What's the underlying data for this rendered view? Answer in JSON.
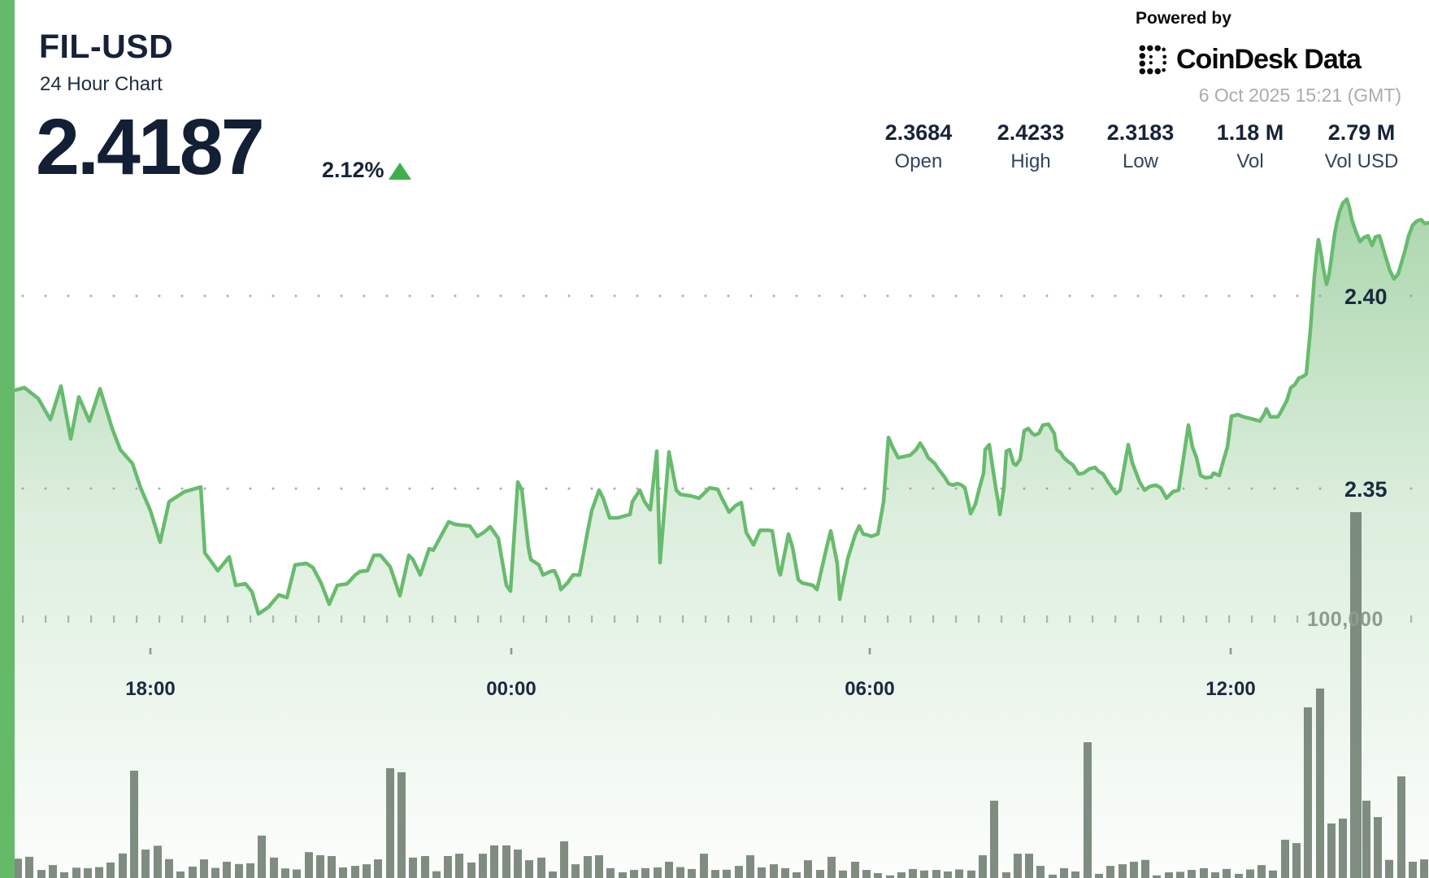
{
  "header": {
    "symbol": "FIL-USD",
    "subtitle": "24 Hour Chart",
    "price": "2.4187",
    "change_percent": "2.12%",
    "change_direction": "up",
    "powered_by": "Powered by",
    "brand": "CoinDesk Data",
    "timestamp": "6 Oct 2025 15:21 (GMT)"
  },
  "stats": [
    {
      "value": "2.3684",
      "label": "Open"
    },
    {
      "value": "2.4233",
      "label": "High"
    },
    {
      "value": "2.3183",
      "label": "Low"
    },
    {
      "value": "1.18 M",
      "label": "Vol"
    },
    {
      "value": "2.79 M",
      "label": "Vol USD"
    }
  ],
  "colors": {
    "accent_green": "#65ba6a",
    "line_green": "#68bb6e",
    "fill_green": "#5cb060",
    "triangle_green": "#3fae4c",
    "volume_bar": "#6d7d6f",
    "dark_navy": "#16233a",
    "muted_gray": "#a8acb0",
    "volume_label_gray": "#8d9b8e"
  },
  "chart_data": {
    "type": "area",
    "title": "FIL-USD 24 Hour Chart",
    "price_axis_ticks": [
      "2.40",
      "2.35"
    ],
    "price_axis_values": [
      2.4,
      2.35
    ],
    "volume_axis_tick": "100,000",
    "volume_axis_value": 100000,
    "time_ticks": [
      "18:00",
      "00:00",
      "06:00",
      "12:00"
    ],
    "grid": "dotted",
    "legend": "none",
    "price_points": [
      [
        18,
        2.3755
      ],
      [
        30,
        2.3762
      ],
      [
        47,
        2.3734
      ],
      [
        62,
        2.3679
      ],
      [
        75,
        2.3766
      ],
      [
        87,
        2.3629
      ],
      [
        97,
        2.3738
      ],
      [
        110,
        2.3675
      ],
      [
        123,
        2.3759
      ],
      [
        138,
        2.3656
      ],
      [
        148,
        2.3601
      ],
      [
        163,
        2.3565
      ],
      [
        173,
        2.3502
      ],
      [
        185,
        2.3443
      ],
      [
        197,
        2.3361
      ],
      [
        208,
        2.3466
      ],
      [
        227,
        2.3492
      ],
      [
        247,
        2.3504
      ],
      [
        252,
        2.3333
      ],
      [
        258,
        2.3316
      ],
      [
        268,
        2.3287
      ],
      [
        282,
        2.3323
      ],
      [
        290,
        2.3249
      ],
      [
        302,
        2.3253
      ],
      [
        310,
        2.3232
      ],
      [
        318,
        2.3175
      ],
      [
        330,
        2.3192
      ],
      [
        343,
        2.3224
      ],
      [
        353,
        2.3217
      ],
      [
        363,
        2.3302
      ],
      [
        377,
        2.3306
      ],
      [
        385,
        2.3295
      ],
      [
        395,
        2.3255
      ],
      [
        405,
        2.32
      ],
      [
        415,
        2.3249
      ],
      [
        427,
        2.3253
      ],
      [
        437,
        2.3276
      ],
      [
        443,
        2.3285
      ],
      [
        452,
        2.3287
      ],
      [
        460,
        2.3327
      ],
      [
        468,
        2.3327
      ],
      [
        480,
        2.3297
      ],
      [
        492,
        2.3222
      ],
      [
        503,
        2.3327
      ],
      [
        508,
        2.3316
      ],
      [
        517,
        2.3276
      ],
      [
        528,
        2.3344
      ],
      [
        533,
        2.334
      ],
      [
        552,
        2.3414
      ],
      [
        560,
        2.3407
      ],
      [
        578,
        2.3403
      ],
      [
        587,
        2.3376
      ],
      [
        595,
        2.3386
      ],
      [
        603,
        2.3401
      ],
      [
        613,
        2.3371
      ],
      [
        623,
        2.3249
      ],
      [
        628,
        2.3234
      ],
      [
        637,
        2.3517
      ],
      [
        642,
        2.3496
      ],
      [
        650,
        2.3348
      ],
      [
        653,
        2.3316
      ],
      [
        663,
        2.3302
      ],
      [
        668,
        2.3276
      ],
      [
        677,
        2.3285
      ],
      [
        682,
        2.3287
      ],
      [
        687,
        2.3264
      ],
      [
        690,
        2.3238
      ],
      [
        698,
        2.3255
      ],
      [
        705,
        2.3276
      ],
      [
        713,
        2.3276
      ],
      [
        723,
        2.339
      ],
      [
        728,
        2.3443
      ],
      [
        737,
        2.3496
      ],
      [
        742,
        2.3475
      ],
      [
        750,
        2.3424
      ],
      [
        760,
        2.3424
      ],
      [
        775,
        2.3433
      ],
      [
        778,
        2.3466
      ],
      [
        787,
        2.3496
      ],
      [
        793,
        2.3466
      ],
      [
        800,
        2.3445
      ],
      [
        808,
        2.3597
      ],
      [
        812,
        2.3308
      ],
      [
        823,
        2.3595
      ],
      [
        832,
        2.3496
      ],
      [
        837,
        2.3485
      ],
      [
        850,
        2.3481
      ],
      [
        860,
        2.3475
      ],
      [
        873,
        2.3502
      ],
      [
        883,
        2.3498
      ],
      [
        888,
        2.3475
      ],
      [
        897,
        2.3439
      ],
      [
        905,
        2.3456
      ],
      [
        912,
        2.3464
      ],
      [
        918,
        2.3386
      ],
      [
        927,
        2.3354
      ],
      [
        935,
        2.3392
      ],
      [
        945,
        2.3392
      ],
      [
        950,
        2.339
      ],
      [
        958,
        2.3287
      ],
      [
        960,
        2.3276
      ],
      [
        970,
        2.3382
      ],
      [
        975,
        2.3348
      ],
      [
        982,
        2.3264
      ],
      [
        987,
        2.3255
      ],
      [
        1000,
        2.3249
      ],
      [
        1005,
        2.3238
      ],
      [
        1017,
        2.3348
      ],
      [
        1022,
        2.339
      ],
      [
        1030,
        2.3306
      ],
      [
        1033,
        2.3213
      ],
      [
        1043,
        2.3319
      ],
      [
        1052,
        2.338
      ],
      [
        1057,
        2.3403
      ],
      [
        1062,
        2.3382
      ],
      [
        1067,
        2.338
      ],
      [
        1072,
        2.3376
      ],
      [
        1077,
        2.338
      ],
      [
        1080,
        2.3382
      ],
      [
        1087,
        2.3466
      ],
      [
        1093,
        2.3633
      ],
      [
        1098,
        2.3608
      ],
      [
        1105,
        2.358
      ],
      [
        1110,
        2.3582
      ],
      [
        1120,
        2.3587
      ],
      [
        1127,
        2.3601
      ],
      [
        1132,
        2.3618
      ],
      [
        1137,
        2.3601
      ],
      [
        1142,
        2.358
      ],
      [
        1150,
        2.3565
      ],
      [
        1155,
        2.3549
      ],
      [
        1162,
        2.353
      ],
      [
        1167,
        2.3513
      ],
      [
        1172,
        2.3509
      ],
      [
        1178,
        2.3513
      ],
      [
        1183,
        2.3509
      ],
      [
        1187,
        2.3502
      ],
      [
        1192,
        2.3456
      ],
      [
        1194,
        2.3435
      ],
      [
        1200,
        2.346
      ],
      [
        1205,
        2.3502
      ],
      [
        1210,
        2.354
      ],
      [
        1212,
        2.3601
      ],
      [
        1217,
        2.3614
      ],
      [
        1222,
        2.3544
      ],
      [
        1225,
        2.3502
      ],
      [
        1228,
        2.3466
      ],
      [
        1230,
        2.3433
      ],
      [
        1235,
        2.3502
      ],
      [
        1238,
        2.3597
      ],
      [
        1242,
        2.3601
      ],
      [
        1247,
        2.3565
      ],
      [
        1250,
        2.3561
      ],
      [
        1255,
        2.3576
      ],
      [
        1260,
        2.365
      ],
      [
        1265,
        2.3656
      ],
      [
        1270,
        2.3643
      ],
      [
        1273,
        2.3639
      ],
      [
        1278,
        2.3643
      ],
      [
        1283,
        2.3665
      ],
      [
        1290,
        2.3667
      ],
      [
        1297,
        2.3643
      ],
      [
        1300,
        2.3601
      ],
      [
        1305,
        2.3593
      ],
      [
        1308,
        2.3582
      ],
      [
        1313,
        2.3572
      ],
      [
        1320,
        2.3561
      ],
      [
        1327,
        2.3538
      ],
      [
        1333,
        2.354
      ],
      [
        1340,
        2.3551
      ],
      [
        1347,
        2.3555
      ],
      [
        1352,
        2.3544
      ],
      [
        1357,
        2.3538
      ],
      [
        1363,
        2.3517
      ],
      [
        1368,
        2.3502
      ],
      [
        1373,
        2.3487
      ],
      [
        1378,
        2.3496
      ],
      [
        1388,
        2.3614
      ],
      [
        1393,
        2.3567
      ],
      [
        1402,
        2.3517
      ],
      [
        1408,
        2.3496
      ],
      [
        1415,
        2.3506
      ],
      [
        1422,
        2.3509
      ],
      [
        1428,
        2.3502
      ],
      [
        1435,
        2.3475
      ],
      [
        1443,
        2.3492
      ],
      [
        1450,
        2.3496
      ],
      [
        1462,
        2.3665
      ],
      [
        1467,
        2.3608
      ],
      [
        1472,
        2.358
      ],
      [
        1477,
        2.3534
      ],
      [
        1483,
        2.3528
      ],
      [
        1490,
        2.353
      ],
      [
        1493,
        2.354
      ],
      [
        1500,
        2.3534
      ],
      [
        1505,
        2.3572
      ],
      [
        1510,
        2.3608
      ],
      [
        1515,
        2.3688
      ],
      [
        1523,
        2.3692
      ],
      [
        1530,
        2.3686
      ],
      [
        1540,
        2.3681
      ],
      [
        1550,
        2.3675
      ],
      [
        1555,
        2.3692
      ],
      [
        1558,
        2.3707
      ],
      [
        1563,
        2.3686
      ],
      [
        1572,
        2.3686
      ],
      [
        1575,
        2.3696
      ],
      [
        1583,
        2.3728
      ],
      [
        1588,
        2.3762
      ],
      [
        1593,
        2.377
      ],
      [
        1598,
        2.3787
      ],
      [
        1603,
        2.3791
      ],
      [
        1607,
        2.3797
      ],
      [
        1612,
        2.3909
      ],
      [
        1617,
        2.4051
      ],
      [
        1620,
        2.4114
      ],
      [
        1622,
        2.4146
      ],
      [
        1625,
        2.4114
      ],
      [
        1628,
        2.4072
      ],
      [
        1632,
        2.403
      ],
      [
        1635,
        2.4055
      ],
      [
        1638,
        2.4099
      ],
      [
        1642,
        2.4162
      ],
      [
        1645,
        2.4194
      ],
      [
        1648,
        2.4219
      ],
      [
        1652,
        2.4241
      ],
      [
        1657,
        2.4251
      ],
      [
        1660,
        2.423
      ],
      [
        1663,
        2.4198
      ],
      [
        1668,
        2.4167
      ],
      [
        1673,
        2.4141
      ],
      [
        1678,
        2.4152
      ],
      [
        1683,
        2.4156
      ],
      [
        1688,
        2.4131
      ],
      [
        1692,
        2.4153
      ],
      [
        1697,
        2.4156
      ],
      [
        1700,
        2.4135
      ],
      [
        1705,
        2.4099
      ],
      [
        1710,
        2.4065
      ],
      [
        1715,
        2.4044
      ],
      [
        1720,
        2.4057
      ],
      [
        1723,
        2.4078
      ],
      [
        1728,
        2.4114
      ],
      [
        1733,
        2.4156
      ],
      [
        1738,
        2.4184
      ],
      [
        1743,
        2.4194
      ],
      [
        1748,
        2.4198
      ],
      [
        1753,
        2.4188
      ],
      [
        1758,
        2.419
      ]
    ],
    "volume_bars": [
      [
        22,
        7500
      ],
      [
        36,
        8200
      ],
      [
        51,
        3100
      ],
      [
        65,
        5000
      ],
      [
        79,
        2200
      ],
      [
        94,
        4000
      ],
      [
        108,
        3800
      ],
      [
        122,
        4200
      ],
      [
        136,
        6000
      ],
      [
        151,
        9500
      ],
      [
        165,
        41500
      ],
      [
        179,
        11000
      ],
      [
        194,
        12500
      ],
      [
        208,
        7300
      ],
      [
        222,
        2500
      ],
      [
        237,
        4400
      ],
      [
        251,
        7200
      ],
      [
        265,
        3900
      ],
      [
        279,
        6300
      ],
      [
        294,
        5400
      ],
      [
        308,
        5700
      ],
      [
        322,
        16400
      ],
      [
        337,
        7900
      ],
      [
        351,
        3700
      ],
      [
        365,
        3300
      ],
      [
        380,
        10000
      ],
      [
        394,
        8800
      ],
      [
        408,
        8500
      ],
      [
        422,
        4100
      ],
      [
        437,
        4700
      ],
      [
        451,
        5300
      ],
      [
        465,
        7200
      ],
      [
        480,
        42500
      ],
      [
        494,
        40900
      ],
      [
        508,
        7900
      ],
      [
        523,
        8500
      ],
      [
        537,
        2600
      ],
      [
        551,
        8500
      ],
      [
        565,
        9400
      ],
      [
        580,
        6000
      ],
      [
        594,
        9400
      ],
      [
        608,
        12600
      ],
      [
        623,
        12600
      ],
      [
        637,
        11000
      ],
      [
        651,
        6900
      ],
      [
        666,
        7900
      ],
      [
        680,
        2500
      ],
      [
        694,
        14200
      ],
      [
        708,
        5300
      ],
      [
        723,
        8500
      ],
      [
        737,
        8800
      ],
      [
        751,
        3800
      ],
      [
        766,
        2200
      ],
      [
        780,
        3100
      ],
      [
        794,
        3800
      ],
      [
        809,
        4100
      ],
      [
        823,
        6300
      ],
      [
        837,
        4200
      ],
      [
        851,
        3500
      ],
      [
        866,
        9400
      ],
      [
        880,
        3100
      ],
      [
        894,
        3200
      ],
      [
        909,
        4700
      ],
      [
        923,
        8800
      ],
      [
        937,
        4100
      ],
      [
        952,
        5300
      ],
      [
        966,
        3800
      ],
      [
        980,
        2200
      ],
      [
        994,
        6900
      ],
      [
        1009,
        3100
      ],
      [
        1023,
        8200
      ],
      [
        1037,
        2900
      ],
      [
        1052,
        6300
      ],
      [
        1066,
        3100
      ],
      [
        1080,
        1900
      ],
      [
        1095,
        1000
      ],
      [
        1109,
        2200
      ],
      [
        1123,
        3500
      ],
      [
        1137,
        2900
      ],
      [
        1152,
        3100
      ],
      [
        1166,
        2500
      ],
      [
        1180,
        3300
      ],
      [
        1195,
        2900
      ],
      [
        1209,
        8800
      ],
      [
        1223,
        29900
      ],
      [
        1238,
        2200
      ],
      [
        1252,
        9400
      ],
      [
        1266,
        9400
      ],
      [
        1280,
        4700
      ],
      [
        1295,
        1300
      ],
      [
        1309,
        3800
      ],
      [
        1323,
        2500
      ],
      [
        1338,
        52500
      ],
      [
        1352,
        1600
      ],
      [
        1366,
        4700
      ],
      [
        1381,
        5300
      ],
      [
        1395,
        6300
      ],
      [
        1409,
        7000
      ],
      [
        1423,
        1000
      ],
      [
        1438,
        2200
      ],
      [
        1452,
        2400
      ],
      [
        1466,
        3100
      ],
      [
        1481,
        3800
      ],
      [
        1495,
        2200
      ],
      [
        1509,
        3500
      ],
      [
        1524,
        1600
      ],
      [
        1538,
        3300
      ],
      [
        1552,
        5000
      ],
      [
        1566,
        2900
      ],
      [
        1581,
        14800
      ],
      [
        1595,
        13500
      ],
      [
        1609,
        66000
      ],
      [
        1624,
        73300
      ],
      [
        1638,
        21100
      ],
      [
        1652,
        23000
      ],
      [
        1668,
        141500
      ],
      [
        1681,
        29900
      ],
      [
        1695,
        23600
      ],
      [
        1709,
        7000
      ],
      [
        1724,
        39300
      ],
      [
        1738,
        6300
      ],
      [
        1752,
        7200
      ]
    ]
  }
}
